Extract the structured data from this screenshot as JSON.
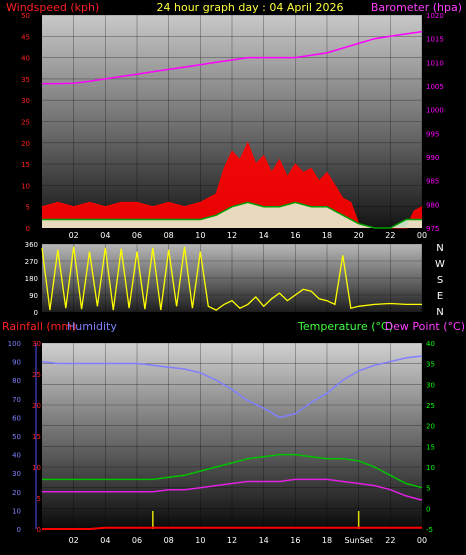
{
  "header": {
    "left": "Windspeed (kph)",
    "center": "24 hour graph day : 04 April 2026",
    "right": "Barometer (hpa)"
  },
  "colors": {
    "wind": "#ff0000",
    "gust_fill": "#ff0000",
    "wind_avg": "#00a000",
    "wind_light": "#e8ffe0",
    "barometer": "#ff00ff",
    "direction": "#ffff00",
    "humidity": "#8080ff",
    "temperature": "#00c000",
    "dewpoint": "#e020e0",
    "rainfall": "#ff0000",
    "sun_markers": "#e0e000",
    "tick_windspeed": "#ff2020",
    "tick_baro": "#ff00ff",
    "tick_temp": "#00ff00",
    "tick_rain": "#ff2020",
    "tick_hum": "#8080ff"
  },
  "panel2": {
    "compass": [
      "N",
      "W",
      "S",
      "E",
      "N"
    ]
  },
  "panel3": {
    "left_label": "Rainfall (mm)",
    "left_label2": "Humidity",
    "right_label": "Temperature (°C)",
    "right_label2": "Dew Point (°C)",
    "sun_label": "SunSet"
  },
  "chart_data": [
    {
      "type": "line",
      "title": "24 hour graph day : 04 April 2026",
      "x_ticks": [
        "02",
        "04",
        "06",
        "08",
        "10",
        "12",
        "14",
        "16",
        "18",
        "20",
        "22",
        "00"
      ],
      "xlim": [
        0,
        24
      ],
      "y_left": {
        "label": "Windspeed (kph)",
        "ylim": [
          0,
          50
        ],
        "ticks": [
          "0",
          "5",
          "10",
          "15",
          "20",
          "25",
          "30",
          "35",
          "40",
          "45",
          "50"
        ]
      },
      "y_right": {
        "label": "Barometer (hpa)",
        "ylim": [
          975,
          1020
        ],
        "ticks": [
          "975",
          "980",
          "985",
          "990",
          "995",
          "1000",
          "1005",
          "1010",
          "1015",
          "1020"
        ]
      },
      "series": [
        {
          "name": "Windspeed (kph)",
          "axis": "left",
          "x": [
            0,
            1,
            2,
            3,
            4,
            5,
            6,
            7,
            8,
            9,
            10,
            11,
            11.5,
            12,
            12.5,
            13,
            13.5,
            14,
            14.5,
            15,
            15.5,
            16,
            16.5,
            17,
            17.5,
            18,
            18.5,
            19,
            19.5,
            20,
            21,
            22,
            23,
            23.5,
            24
          ],
          "y": [
            5,
            6,
            5,
            6,
            5,
            6,
            6,
            5,
            6,
            5,
            6,
            8,
            14,
            18,
            16,
            20,
            15,
            17,
            13,
            16,
            12,
            15,
            13,
            14,
            11,
            13,
            10,
            7,
            6,
            1,
            0,
            0,
            0,
            4,
            5
          ]
        },
        {
          "name": "Average wind (kph)",
          "axis": "left",
          "x": [
            0,
            1,
            2,
            3,
            4,
            5,
            6,
            7,
            8,
            9,
            10,
            11,
            12,
            13,
            14,
            15,
            16,
            17,
            18,
            19,
            20,
            21,
            22,
            23,
            24
          ],
          "y": [
            2,
            2,
            2,
            2,
            2,
            2,
            2,
            2,
            2,
            2,
            2,
            3,
            5,
            6,
            5,
            5,
            6,
            5,
            5,
            3,
            1,
            0,
            0,
            2,
            2
          ]
        },
        {
          "name": "Barometer (hpa)",
          "axis": "right",
          "x": [
            0,
            1,
            2,
            3,
            4,
            5,
            6,
            7,
            8,
            9,
            10,
            11,
            12,
            13,
            14,
            15,
            16,
            17,
            18,
            19,
            20,
            21,
            22,
            23,
            24
          ],
          "y": [
            1005.5,
            1005.5,
            1005.6,
            1006,
            1006.5,
            1007,
            1007.5,
            1008,
            1008.5,
            1009,
            1009.5,
            1010,
            1010.5,
            1011,
            1011,
            1011,
            1011,
            1011.5,
            1012,
            1013,
            1014,
            1015,
            1015.5,
            1016,
            1016.5
          ]
        }
      ]
    },
    {
      "type": "line",
      "x_ticks": [
        "02",
        "04",
        "06",
        "08",
        "10",
        "12",
        "14",
        "16",
        "18",
        "20",
        "22",
        "00"
      ],
      "xlim": [
        0,
        24
      ],
      "y_left": {
        "ylim": [
          0,
          360
        ],
        "ticks": [
          "0",
          "90",
          "180",
          "270",
          "360"
        ]
      },
      "y_right": {
        "ticks": [
          "N",
          "W",
          "S",
          "E",
          "N"
        ]
      },
      "series": [
        {
          "name": "Wind direction",
          "x": [
            0,
            0.5,
            1,
            1.5,
            2,
            2.5,
            3,
            3.5,
            4,
            4.5,
            5,
            5.5,
            6,
            6.5,
            7,
            7.5,
            8,
            8.5,
            9,
            9.5,
            10,
            10.5,
            11,
            11.5,
            12,
            12.5,
            13,
            13.5,
            14,
            14.5,
            15,
            15.5,
            16,
            16.5,
            17,
            17.5,
            18,
            18.5,
            19,
            19.5,
            20,
            21,
            22,
            23,
            24
          ],
          "y": [
            340,
            10,
            330,
            20,
            345,
            15,
            320,
            30,
            340,
            10,
            335,
            20,
            320,
            15,
            340,
            10,
            330,
            30,
            345,
            20,
            320,
            30,
            10,
            40,
            60,
            20,
            40,
            80,
            30,
            70,
            100,
            60,
            90,
            120,
            110,
            70,
            60,
            40,
            300,
            20,
            30,
            40,
            45,
            40,
            40
          ]
        }
      ]
    },
    {
      "type": "line",
      "x_ticks": [
        "02",
        "04",
        "06",
        "08",
        "10",
        "12",
        "14",
        "16",
        "18",
        "SunSet",
        "22",
        "00"
      ],
      "xlim": [
        0,
        24
      ],
      "y_left_outer": {
        "label": "Humidity",
        "ylim": [
          0,
          100
        ],
        "ticks": [
          "0",
          "10",
          "20",
          "30",
          "40",
          "50",
          "60",
          "70",
          "80",
          "90",
          "100"
        ]
      },
      "y_left": {
        "label": "Rainfall (mm)",
        "ylim": [
          0,
          30
        ],
        "ticks": [
          "0",
          "5",
          "10",
          "15",
          "20",
          "25",
          "30"
        ]
      },
      "y_right": {
        "label": "Temperature (°C)",
        "ylim": [
          -5,
          40
        ],
        "ticks": [
          "-5",
          "0",
          "5",
          "10",
          "15",
          "20",
          "25",
          "30",
          "35",
          "40"
        ]
      },
      "series": [
        {
          "name": "Humidity",
          "axis": "left_outer",
          "x": [
            0,
            1,
            2,
            3,
            4,
            5,
            6,
            7,
            8,
            9,
            10,
            11,
            12,
            13,
            14,
            15,
            16,
            17,
            18,
            19,
            20,
            21,
            22,
            23,
            24
          ],
          "y": [
            90,
            89,
            89,
            89,
            89,
            89,
            89,
            88,
            87,
            86,
            84,
            80,
            75,
            69,
            65,
            60,
            62,
            68,
            73,
            80,
            85,
            88,
            90,
            92,
            93
          ]
        },
        {
          "name": "Temperature (°C)",
          "axis": "right",
          "x": [
            0,
            1,
            2,
            3,
            4,
            5,
            6,
            7,
            8,
            9,
            10,
            11,
            12,
            13,
            14,
            15,
            16,
            17,
            18,
            19,
            20,
            21,
            22,
            23,
            24
          ],
          "y": [
            7,
            7,
            7,
            7,
            7,
            7,
            7,
            7,
            7.5,
            8,
            9,
            10,
            11,
            12,
            12.5,
            13,
            13,
            12.5,
            12,
            12,
            11.5,
            10,
            8,
            6,
            5
          ]
        },
        {
          "name": "Dew Point (°C)",
          "axis": "right",
          "x": [
            0,
            1,
            2,
            3,
            4,
            5,
            6,
            7,
            8,
            9,
            10,
            11,
            12,
            13,
            14,
            15,
            16,
            17,
            18,
            19,
            20,
            21,
            22,
            23,
            24
          ],
          "y": [
            4,
            4,
            4,
            4,
            4,
            4,
            4,
            4,
            4.5,
            4.5,
            5,
            5.5,
            6,
            6.5,
            6.5,
            6.5,
            7,
            7,
            7,
            6.5,
            6,
            5.5,
            4.5,
            3,
            2
          ]
        },
        {
          "name": "Rainfall (mm)",
          "axis": "left",
          "x": [
            0,
            1,
            2,
            3,
            4,
            5,
            6,
            7,
            8,
            9,
            10,
            11,
            12,
            13,
            14,
            15,
            16,
            17,
            18,
            19,
            20,
            21,
            22,
            23,
            24
          ],
          "y": [
            0,
            0,
            0,
            0,
            0.2,
            0.2,
            0.2,
            0.2,
            0.2,
            0.2,
            0.2,
            0.2,
            0.2,
            0.2,
            0.2,
            0.2,
            0.2,
            0.2,
            0.2,
            0.2,
            0.2,
            0.2,
            0.2,
            0.2,
            0.2
          ]
        }
      ],
      "sun_markers_x": [
        7,
        20
      ]
    }
  ]
}
